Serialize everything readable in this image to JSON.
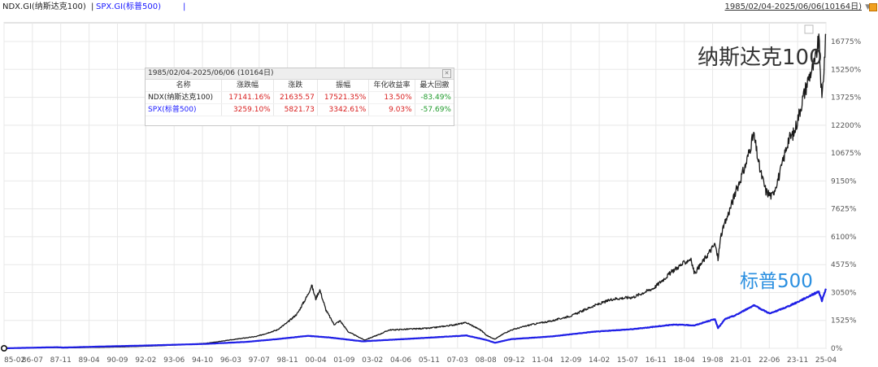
{
  "header": {
    "series1_tab": "NDX.GI(纳斯达克100)",
    "separator": "|",
    "series2_tab": "SPX.GI(标普500)",
    "range_label": "1985/02/04-2025/06/06(10164日)"
  },
  "legend": {
    "title": "1985/02/04-2025/06/06 (10164日)",
    "headers": [
      "名称",
      "涨跌幅",
      "涨跌",
      "振幅",
      "年化收益率",
      "最大回撤"
    ],
    "rows": [
      {
        "name": "NDX(纳斯达克100)",
        "change_pct": "17141.16%",
        "change": "21635.57",
        "amplitude": "17521.35%",
        "annual_return": "13.50%",
        "max_drawdown": "-83.49%"
      },
      {
        "name": "SPX(标普500)",
        "change_pct": "3259.10%",
        "change": "5821.73",
        "amplitude": "3342.61%",
        "annual_return": "9.03%",
        "max_drawdown": "-57.69%"
      }
    ]
  },
  "annotations": {
    "ndx": "纳斯达克100",
    "spx": "标普500"
  },
  "colors": {
    "ndx": "#1a1a1a",
    "spx": "#1f1fe6",
    "grid": "#e8e8e8"
  },
  "chart_data": {
    "type": "line",
    "x_tick_labels": [
      "85-02",
      "86-07",
      "87-11",
      "89-04",
      "90-09",
      "92-02",
      "93-06",
      "94-10",
      "96-03",
      "97-07",
      "98-11",
      "00-04",
      "01-09",
      "03-02",
      "04-06",
      "05-11",
      "07-03",
      "08-08",
      "09-12",
      "11-04",
      "12-09",
      "14-02",
      "15-07",
      "16-11",
      "18-04",
      "19-08",
      "21-01",
      "22-06",
      "23-11",
      "25-04"
    ],
    "y_tick_labels": [
      "0%",
      "1525%",
      "3050%",
      "4575%",
      "6100%",
      "7625%",
      "9150%",
      "10675%",
      "12200%",
      "13725%",
      "15250%",
      "16775%"
    ],
    "ylim": [
      0,
      17800
    ],
    "x_unit": "year",
    "series": [
      {
        "name": "NDX(纳斯达克100)",
        "points": [
          [
            1985.1,
            0
          ],
          [
            1987.7,
            40
          ],
          [
            1988.0,
            20
          ],
          [
            1990.0,
            60
          ],
          [
            1991.0,
            80
          ],
          [
            1993.0,
            150
          ],
          [
            1995.0,
            270
          ],
          [
            1996.5,
            500
          ],
          [
            1997.5,
            650
          ],
          [
            1998.5,
            1000
          ],
          [
            1999.0,
            1400
          ],
          [
            1999.5,
            1900
          ],
          [
            2000.0,
            2900
          ],
          [
            2000.2,
            3450
          ],
          [
            2000.4,
            2700
          ],
          [
            2000.6,
            3200
          ],
          [
            2000.9,
            2100
          ],
          [
            2001.3,
            1300
          ],
          [
            2001.6,
            1500
          ],
          [
            2002.0,
            900
          ],
          [
            2002.8,
            450
          ],
          [
            2003.5,
            750
          ],
          [
            2004.0,
            1000
          ],
          [
            2005.0,
            1050
          ],
          [
            2006.0,
            1100
          ],
          [
            2007.0,
            1250
          ],
          [
            2007.8,
            1400
          ],
          [
            2008.5,
            1000
          ],
          [
            2008.8,
            700
          ],
          [
            2009.2,
            500
          ],
          [
            2009.7,
            850
          ],
          [
            2010.0,
            1000
          ],
          [
            2011.0,
            1300
          ],
          [
            2012.0,
            1500
          ],
          [
            2013.0,
            1800
          ],
          [
            2014.0,
            2300
          ],
          [
            2015.0,
            2700
          ],
          [
            2016.0,
            2800
          ],
          [
            2017.0,
            3300
          ],
          [
            2018.0,
            4300
          ],
          [
            2018.8,
            4900
          ],
          [
            2019.0,
            4100
          ],
          [
            2019.5,
            4900
          ],
          [
            2020.0,
            5700
          ],
          [
            2020.15,
            4900
          ],
          [
            2020.3,
            6200
          ],
          [
            2020.7,
            7500
          ],
          [
            2021.0,
            8500
          ],
          [
            2021.5,
            10000
          ],
          [
            2021.9,
            11700
          ],
          [
            2022.2,
            9800
          ],
          [
            2022.5,
            8600
          ],
          [
            2022.8,
            8300
          ],
          [
            2023.2,
            9600
          ],
          [
            2023.6,
            11400
          ],
          [
            2023.9,
            11800
          ],
          [
            2024.3,
            13600
          ],
          [
            2024.6,
            14800
          ],
          [
            2024.9,
            15600
          ],
          [
            2025.1,
            16900
          ],
          [
            2025.25,
            13500
          ],
          [
            2025.45,
            17141
          ]
        ]
      },
      {
        "name": "SPX(标普500)",
        "points": [
          [
            1985.1,
            0
          ],
          [
            1987.7,
            60
          ],
          [
            1988.0,
            40
          ],
          [
            1990.0,
            100
          ],
          [
            1992.0,
            150
          ],
          [
            1995.0,
            240
          ],
          [
            1997.0,
            350
          ],
          [
            1998.5,
            500
          ],
          [
            2000.0,
            680
          ],
          [
            2001.0,
            600
          ],
          [
            2002.7,
            380
          ],
          [
            2003.5,
            430
          ],
          [
            2005.0,
            520
          ],
          [
            2007.8,
            700
          ],
          [
            2008.8,
            450
          ],
          [
            2009.2,
            300
          ],
          [
            2010.0,
            500
          ],
          [
            2012.0,
            650
          ],
          [
            2014.0,
            900
          ],
          [
            2016.0,
            1050
          ],
          [
            2018.0,
            1300
          ],
          [
            2019.0,
            1250
          ],
          [
            2020.0,
            1600
          ],
          [
            2020.15,
            1100
          ],
          [
            2020.5,
            1600
          ],
          [
            2021.0,
            1800
          ],
          [
            2021.9,
            2350
          ],
          [
            2022.7,
            1900
          ],
          [
            2023.5,
            2250
          ],
          [
            2024.0,
            2500
          ],
          [
            2024.8,
            2950
          ],
          [
            2025.1,
            3100
          ],
          [
            2025.25,
            2600
          ],
          [
            2025.45,
            3259
          ]
        ]
      }
    ]
  }
}
